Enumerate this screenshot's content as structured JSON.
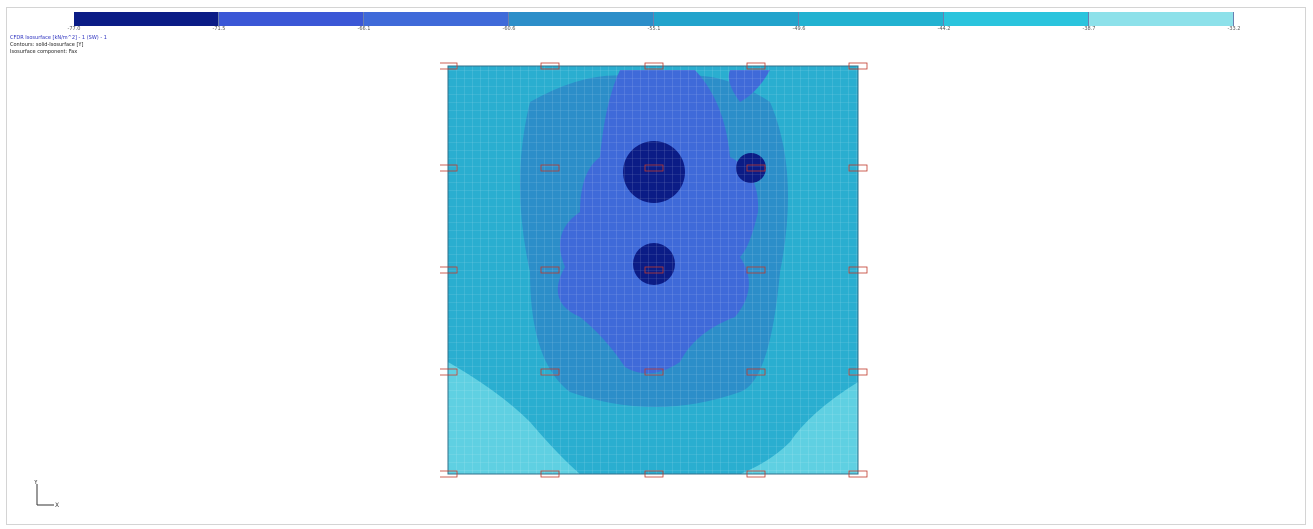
{
  "colorbar": {
    "colors": [
      "#0b1c86",
      "#3b57d6",
      "#3f6ad9",
      "#2c8ec9",
      "#22a3cc",
      "#22b2d1",
      "#2ac4dd",
      "#8de1ea"
    ],
    "tick_labels": [
      "-77.0",
      "-71.5",
      "-66.1",
      "-60.6",
      "-55.1",
      "-49.6",
      "-44.2",
      "-38.7",
      "-33.2"
    ]
  },
  "info_lines": [
    "CFDR Isosurface [kN/m^2] - 1 (SW) - 1",
    "Contours: solid-Isosurface [Y]",
    "Isosurface component: Fax"
  ],
  "plot": {
    "grid": true,
    "color_background": "#2aaed0",
    "color_mid": "#2c8ec9",
    "color_inner": "#3f6ad9",
    "color_core": "#0b1c86",
    "color_light": "#5fd0e2",
    "node_color": "#c0392b"
  },
  "axes_indicator": {
    "x_label": "X",
    "y_label": "Y"
  }
}
